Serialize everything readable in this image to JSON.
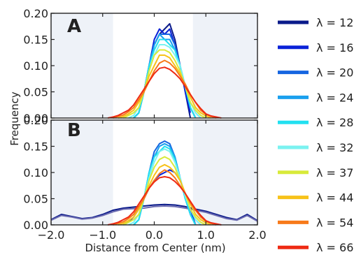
{
  "chart_data": {
    "type": "line",
    "ylabel": "Frequency",
    "xlabel": "Distance from Center (nm)",
    "xlim": [
      -2.0,
      2.0
    ],
    "ylim": [
      0.0,
      0.2
    ],
    "x_ticks": [
      "−2.0",
      "−1.0",
      "0.0",
      "1.0",
      "2.0"
    ],
    "y_ticks": [
      "0.00",
      "0.05",
      "0.10",
      "0.15",
      "0.20"
    ],
    "shaded_x_ranges": [
      [
        -2.0,
        -0.8
      ],
      [
        0.75,
        2.0
      ]
    ],
    "legend": {
      "placement": "right",
      "entries": [
        {
          "label": "λ = 12",
          "color": "#0a1a8a"
        },
        {
          "label": "λ = 16",
          "color": "#0a22d8"
        },
        {
          "label": "λ = 20",
          "color": "#1565e0"
        },
        {
          "label": "λ = 24",
          "color": "#1aa0ee"
        },
        {
          "label": "λ = 28",
          "color": "#22e0f0"
        },
        {
          "label": "λ = 32",
          "color": "#7af2f0"
        },
        {
          "label": "λ = 37",
          "color": "#d8ea3a"
        },
        {
          "label": "λ = 44",
          "color": "#f7c21a"
        },
        {
          "label": "λ = 54",
          "color": "#f77a1a"
        },
        {
          "label": "λ = 66",
          "color": "#ee2a14"
        }
      ]
    },
    "panels": [
      {
        "label": "A",
        "series": [
          {
            "color": "#0a1a8a",
            "x": [
              -0.4,
              -0.3,
              -0.2,
              -0.1,
              0.0,
              0.1,
              0.2,
              0.3,
              0.4,
              0.5,
              0.6,
              0.7
            ],
            "y": [
              0.0,
              0.01,
              0.05,
              0.1,
              0.14,
              0.16,
              0.17,
              0.18,
              0.15,
              0.1,
              0.05,
              0.0
            ]
          },
          {
            "color": "#0a22d8",
            "x": [
              -0.4,
              -0.3,
              -0.2,
              -0.1,
              0.0,
              0.1,
              0.2,
              0.3,
              0.4,
              0.5,
              0.6,
              0.7
            ],
            "y": [
              0.0,
              0.01,
              0.05,
              0.1,
              0.15,
              0.17,
              0.16,
              0.17,
              0.14,
              0.1,
              0.05,
              0.01
            ]
          },
          {
            "color": "#1565e0",
            "x": [
              -0.4,
              -0.3,
              -0.2,
              -0.1,
              0.0,
              0.1,
              0.2,
              0.3,
              0.4,
              0.5,
              0.6,
              0.7,
              0.8
            ],
            "y": [
              0.0,
              0.01,
              0.05,
              0.1,
              0.14,
              0.16,
              0.16,
              0.16,
              0.14,
              0.1,
              0.06,
              0.02,
              0.0
            ]
          },
          {
            "color": "#1aa0ee",
            "x": [
              -0.4,
              -0.3,
              -0.2,
              -0.1,
              0.0,
              0.1,
              0.2,
              0.3,
              0.4,
              0.5,
              0.6,
              0.7,
              0.8
            ],
            "y": [
              0.0,
              0.01,
              0.05,
              0.1,
              0.14,
              0.16,
              0.15,
              0.15,
              0.13,
              0.1,
              0.06,
              0.02,
              0.0
            ]
          },
          {
            "color": "#22e0f0",
            "x": [
              -0.4,
              -0.3,
              -0.2,
              -0.1,
              0.0,
              0.1,
              0.2,
              0.3,
              0.4,
              0.5,
              0.6,
              0.7,
              0.8
            ],
            "y": [
              0.0,
              0.01,
              0.05,
              0.1,
              0.13,
              0.15,
              0.15,
              0.14,
              0.13,
              0.1,
              0.06,
              0.02,
              0.0
            ]
          },
          {
            "color": "#7af2f0",
            "x": [
              -0.5,
              -0.4,
              -0.3,
              -0.2,
              -0.1,
              0.0,
              0.1,
              0.2,
              0.3,
              0.4,
              0.5,
              0.6,
              0.7,
              0.8,
              0.9
            ],
            "y": [
              0.0,
              0.005,
              0.02,
              0.05,
              0.09,
              0.12,
              0.14,
              0.14,
              0.135,
              0.12,
              0.1,
              0.06,
              0.03,
              0.01,
              0.0
            ]
          },
          {
            "color": "#d8ea3a",
            "x": [
              -0.6,
              -0.5,
              -0.4,
              -0.3,
              -0.2,
              -0.1,
              0.0,
              0.1,
              0.2,
              0.3,
              0.4,
              0.5,
              0.6,
              0.7,
              0.8,
              0.9,
              1.0
            ],
            "y": [
              0.0,
              0.005,
              0.01,
              0.02,
              0.05,
              0.09,
              0.12,
              0.13,
              0.13,
              0.125,
              0.11,
              0.09,
              0.06,
              0.03,
              0.015,
              0.005,
              0.0
            ]
          },
          {
            "color": "#f7c21a",
            "x": [
              -0.7,
              -0.6,
              -0.5,
              -0.4,
              -0.3,
              -0.2,
              -0.1,
              0.0,
              0.1,
              0.2,
              0.3,
              0.4,
              0.5,
              0.6,
              0.7,
              0.8,
              0.9,
              1.0,
              1.1
            ],
            "y": [
              0.0,
              0.003,
              0.008,
              0.015,
              0.03,
              0.05,
              0.08,
              0.1,
              0.12,
              0.12,
              0.115,
              0.1,
              0.085,
              0.06,
              0.04,
              0.02,
              0.01,
              0.004,
              0.0
            ]
          },
          {
            "color": "#f77a1a",
            "x": [
              -0.8,
              -0.7,
              -0.6,
              -0.5,
              -0.4,
              -0.3,
              -0.2,
              -0.1,
              0.0,
              0.1,
              0.2,
              0.3,
              0.4,
              0.5,
              0.6,
              0.7,
              0.8,
              0.9,
              1.0,
              1.1,
              1.2
            ],
            "y": [
              0.0,
              0.003,
              0.006,
              0.012,
              0.02,
              0.035,
              0.05,
              0.07,
              0.09,
              0.105,
              0.11,
              0.105,
              0.095,
              0.08,
              0.065,
              0.045,
              0.03,
              0.015,
              0.007,
              0.003,
              0.0
            ]
          },
          {
            "color": "#ee2a14",
            "x": [
              -0.9,
              -0.8,
              -0.7,
              -0.6,
              -0.5,
              -0.4,
              -0.3,
              -0.2,
              -0.1,
              0.0,
              0.1,
              0.2,
              0.3,
              0.4,
              0.5,
              0.6,
              0.7,
              0.8,
              0.9,
              1.0,
              1.1,
              1.2,
              1.3
            ],
            "y": [
              0.0,
              0.002,
              0.005,
              0.01,
              0.015,
              0.025,
              0.04,
              0.055,
              0.07,
              0.085,
              0.095,
              0.097,
              0.093,
              0.085,
              0.075,
              0.06,
              0.045,
              0.03,
              0.018,
              0.008,
              0.004,
              0.002,
              0.0
            ]
          }
        ]
      },
      {
        "label": "B",
        "series": [
          {
            "color": "#0a1a8a",
            "x": [
              -2.0,
              -1.8,
              -1.6,
              -1.4,
              -1.2,
              -1.0,
              -0.8,
              -0.6,
              -0.4,
              -0.2,
              0.0,
              0.2,
              0.4,
              0.6,
              0.8,
              1.0,
              1.2,
              1.4,
              1.6,
              1.8,
              2.0
            ],
            "y": [
              0.01,
              0.02,
              0.016,
              0.012,
              0.014,
              0.02,
              0.028,
              0.032,
              0.034,
              0.036,
              0.038,
              0.039,
              0.038,
              0.035,
              0.03,
              0.026,
              0.02,
              0.014,
              0.01,
              0.02,
              0.008
            ]
          },
          {
            "color": "#6a6ab0",
            "x": [
              -2.0,
              -1.8,
              -1.6,
              -1.4,
              -1.2,
              -1.0,
              -0.8,
              -0.6,
              -0.4,
              -0.2,
              0.0,
              0.2,
              0.4,
              0.6,
              0.8,
              1.0,
              1.2,
              1.4,
              1.6,
              1.8,
              2.0
            ],
            "y": [
              0.009,
              0.018,
              0.015,
              0.011,
              0.013,
              0.018,
              0.025,
              0.03,
              0.031,
              0.032,
              0.035,
              0.036,
              0.035,
              0.032,
              0.028,
              0.024,
              0.018,
              0.012,
              0.009,
              0.018,
              0.007
            ]
          },
          {
            "color": "#0a22d8",
            "x": [
              -0.6,
              -0.5,
              -0.4,
              -0.3,
              -0.2,
              -0.1,
              0.0,
              0.1,
              0.2,
              0.3,
              0.4,
              0.5,
              0.6,
              0.7,
              0.8
            ],
            "y": [
              0.0,
              0.005,
              0.015,
              0.03,
              0.05,
              0.07,
              0.085,
              0.095,
              0.1,
              0.105,
              0.1,
              0.085,
              0.06,
              0.03,
              0.0
            ]
          },
          {
            "color": "#1565e0",
            "x": [
              -0.4,
              -0.3,
              -0.2,
              -0.1,
              0.0,
              0.1,
              0.2,
              0.3,
              0.4,
              0.5,
              0.6,
              0.7,
              0.8
            ],
            "y": [
              0.0,
              0.01,
              0.05,
              0.1,
              0.14,
              0.155,
              0.16,
              0.155,
              0.13,
              0.09,
              0.05,
              0.02,
              0.0
            ]
          },
          {
            "color": "#1aa0ee",
            "x": [
              -0.4,
              -0.3,
              -0.2,
              -0.1,
              0.0,
              0.1,
              0.2,
              0.3,
              0.4,
              0.5,
              0.6,
              0.7,
              0.8
            ],
            "y": [
              0.0,
              0.01,
              0.05,
              0.1,
              0.13,
              0.15,
              0.155,
              0.15,
              0.13,
              0.09,
              0.05,
              0.02,
              0.0
            ]
          },
          {
            "color": "#22e0f0",
            "x": [
              -0.4,
              -0.3,
              -0.2,
              -0.1,
              0.0,
              0.1,
              0.2,
              0.3,
              0.4,
              0.5,
              0.6,
              0.7,
              0.8
            ],
            "y": [
              0.0,
              0.01,
              0.05,
              0.1,
              0.13,
              0.14,
              0.15,
              0.145,
              0.125,
              0.09,
              0.05,
              0.02,
              0.0
            ]
          },
          {
            "color": "#7af2f0",
            "x": [
              -0.5,
              -0.4,
              -0.3,
              -0.2,
              -0.1,
              0.0,
              0.1,
              0.2,
              0.3,
              0.4,
              0.5,
              0.6,
              0.7,
              0.8,
              0.9
            ],
            "y": [
              0.0,
              0.005,
              0.02,
              0.05,
              0.09,
              0.12,
              0.14,
              0.145,
              0.14,
              0.12,
              0.09,
              0.055,
              0.03,
              0.01,
              0.0
            ]
          },
          {
            "color": "#d8ea3a",
            "x": [
              -0.6,
              -0.5,
              -0.4,
              -0.3,
              -0.2,
              -0.1,
              0.0,
              0.1,
              0.2,
              0.3,
              0.4,
              0.5,
              0.6,
              0.7,
              0.8,
              0.9,
              1.0
            ],
            "y": [
              0.0,
              0.005,
              0.01,
              0.02,
              0.05,
              0.085,
              0.11,
              0.125,
              0.13,
              0.125,
              0.11,
              0.085,
              0.06,
              0.03,
              0.015,
              0.005,
              0.0
            ]
          },
          {
            "color": "#f7c21a",
            "x": [
              -0.7,
              -0.6,
              -0.5,
              -0.4,
              -0.3,
              -0.2,
              -0.1,
              0.0,
              0.1,
              0.2,
              0.3,
              0.4,
              0.5,
              0.6,
              0.7,
              0.8,
              0.9,
              1.0,
              1.1
            ],
            "y": [
              0.0,
              0.003,
              0.008,
              0.015,
              0.03,
              0.05,
              0.075,
              0.095,
              0.11,
              0.115,
              0.11,
              0.1,
              0.085,
              0.06,
              0.04,
              0.02,
              0.01,
              0.004,
              0.0
            ]
          },
          {
            "color": "#f77a1a",
            "x": [
              -0.8,
              -0.7,
              -0.6,
              -0.5,
              -0.4,
              -0.3,
              -0.2,
              -0.1,
              0.0,
              0.1,
              0.2,
              0.3,
              0.4,
              0.5,
              0.6,
              0.7,
              0.8,
              0.9,
              1.0,
              1.1,
              1.2
            ],
            "y": [
              0.0,
              0.003,
              0.006,
              0.012,
              0.02,
              0.035,
              0.05,
              0.07,
              0.085,
              0.098,
              0.105,
              0.1,
              0.09,
              0.075,
              0.06,
              0.042,
              0.028,
              0.015,
              0.007,
              0.003,
              0.0
            ]
          },
          {
            "color": "#ee2a14",
            "x": [
              -0.9,
              -0.8,
              -0.7,
              -0.6,
              -0.5,
              -0.4,
              -0.3,
              -0.2,
              -0.1,
              0.0,
              0.1,
              0.2,
              0.3,
              0.4,
              0.5,
              0.6,
              0.7,
              0.8,
              0.9,
              1.0,
              1.1,
              1.2,
              1.3
            ],
            "y": [
              0.0,
              0.002,
              0.005,
              0.01,
              0.015,
              0.025,
              0.04,
              0.055,
              0.07,
              0.082,
              0.09,
              0.092,
              0.09,
              0.083,
              0.073,
              0.06,
              0.045,
              0.03,
              0.018,
              0.008,
              0.004,
              0.002,
              0.0
            ]
          }
        ]
      }
    ]
  }
}
